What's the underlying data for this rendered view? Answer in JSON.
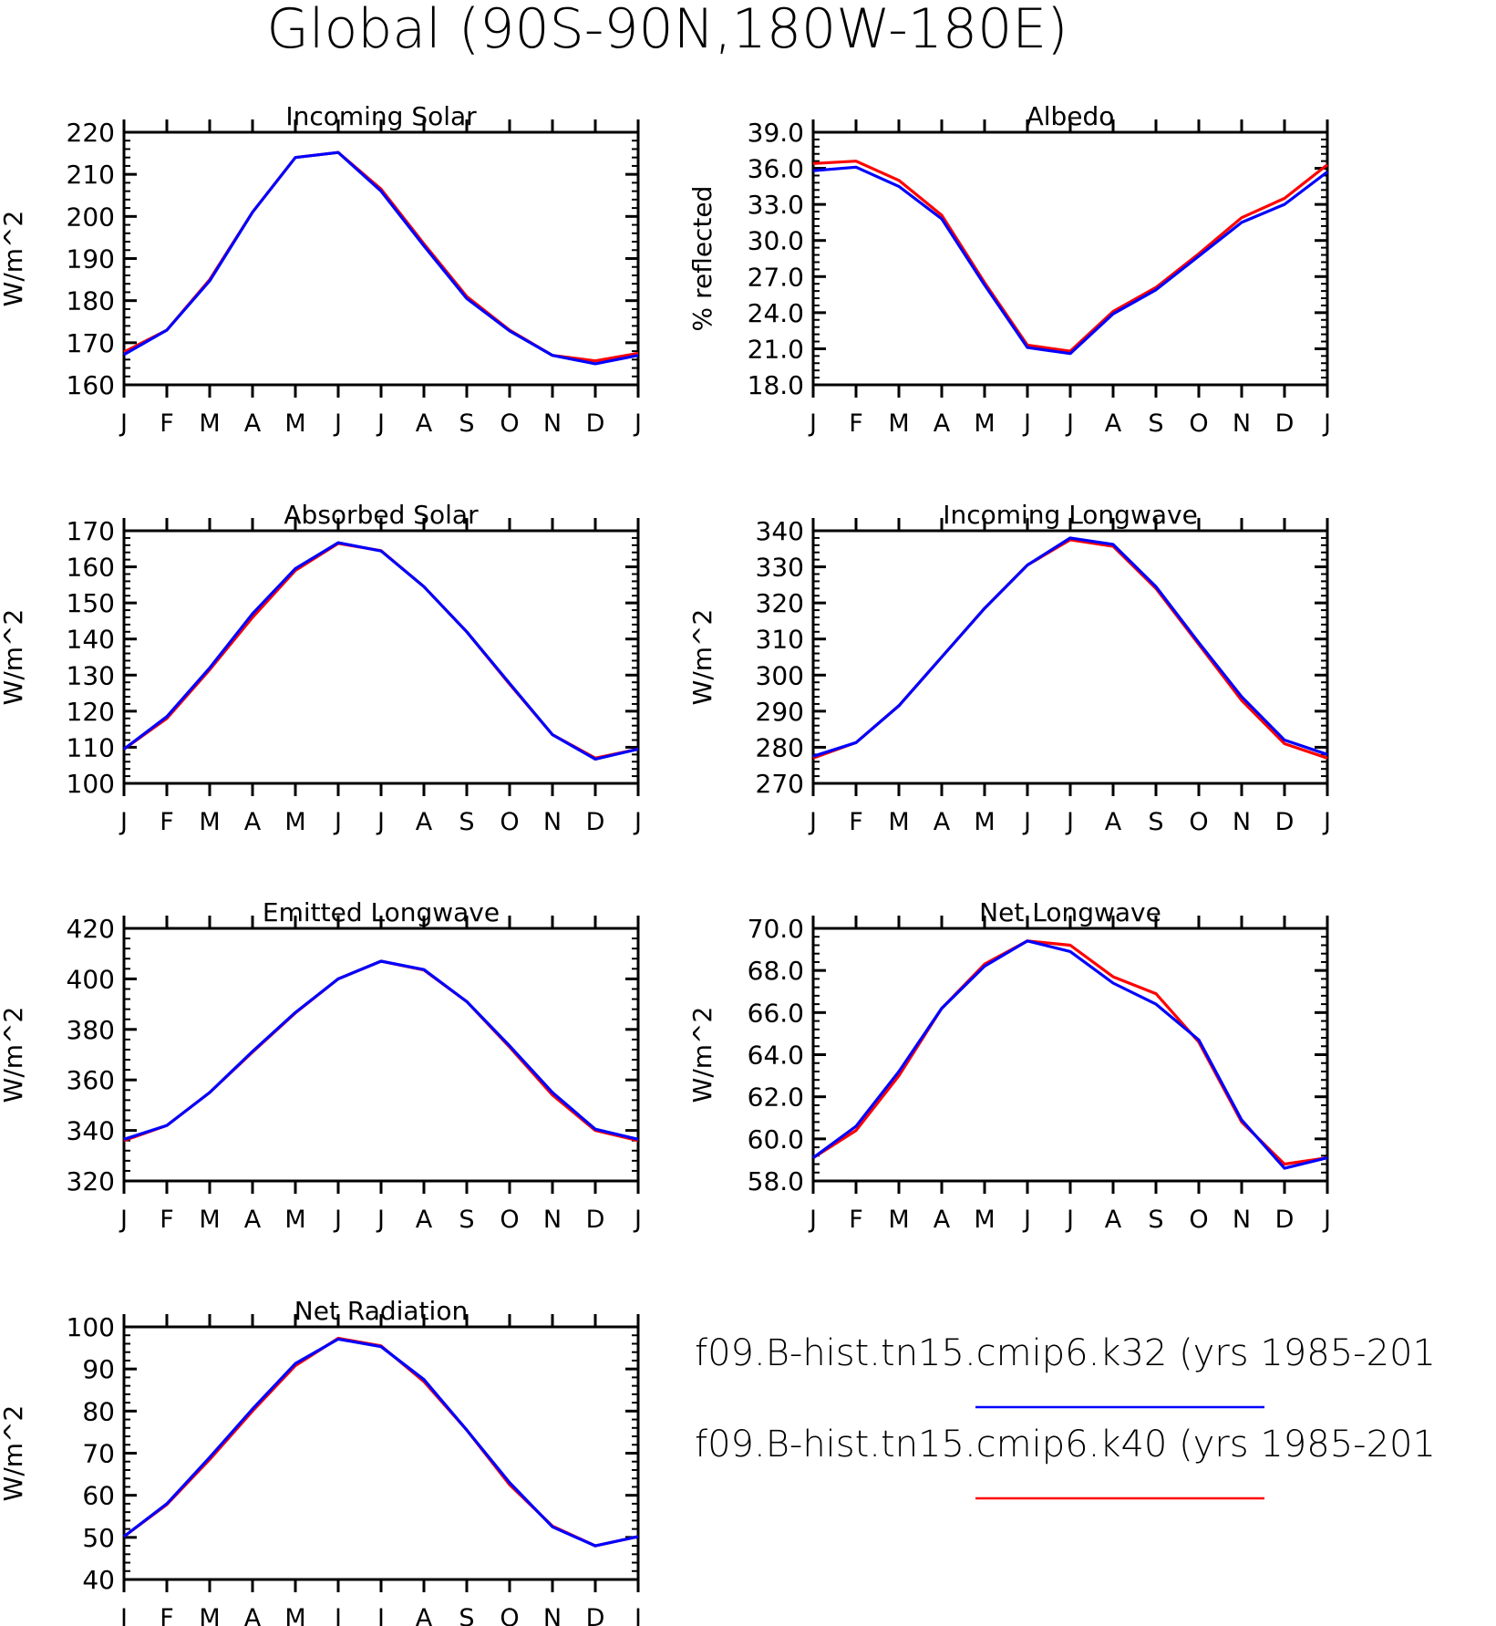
{
  "page_title": "Global (90S-90N,180W-180E)",
  "legend": {
    "placement": "bottom-right",
    "entries": [
      {
        "label": "f09.B-hist.tn15.cmip6.k32 (yrs 1985-201",
        "color": "#0000ff"
      },
      {
        "label": "f09.B-hist.tn15.cmip6.k40 (yrs 1985-201",
        "color": "#ff0000"
      }
    ]
  },
  "chart_data": [
    {
      "type": "line",
      "title": "Incoming Solar",
      "ylabel": "W/m^2",
      "xlabel": "",
      "categories": [
        "J",
        "F",
        "M",
        "A",
        "M",
        "J",
        "J",
        "A",
        "S",
        "O",
        "N",
        "D",
        "J"
      ],
      "ylim": [
        160,
        220
      ],
      "yticks": [
        "160",
        "170",
        "180",
        "190",
        "200",
        "210",
        "220"
      ],
      "grid": false,
      "series": [
        {
          "color": "#ff0000",
          "values": [
            167.8,
            173,
            185,
            201,
            214,
            215.2,
            206.5,
            193.5,
            181,
            173,
            167,
            165.7,
            167.5
          ]
        },
        {
          "color": "#0000ff",
          "values": [
            167.2,
            173,
            184.7,
            201,
            214,
            215.2,
            206,
            193,
            180.5,
            172.8,
            167,
            165,
            167
          ]
        }
      ]
    },
    {
      "type": "line",
      "title": "Albedo",
      "ylabel": "% reflected",
      "xlabel": "",
      "categories": [
        "J",
        "F",
        "M",
        "A",
        "M",
        "J",
        "J",
        "A",
        "S",
        "O",
        "N",
        "D",
        "J"
      ],
      "ylim": [
        18,
        39
      ],
      "yticks": [
        "18.0",
        "21.0",
        "24.0",
        "27.0",
        "30.0",
        "33.0",
        "36.0",
        "39.0"
      ],
      "grid": false,
      "series": [
        {
          "color": "#ff0000",
          "values": [
            36.4,
            36.6,
            35.0,
            32.1,
            26.5,
            21.3,
            20.8,
            24.1,
            26.1,
            28.9,
            31.9,
            33.5,
            36.3
          ]
        },
        {
          "color": "#0000ff",
          "values": [
            35.8,
            36.1,
            34.5,
            31.8,
            26.3,
            21.1,
            20.6,
            23.9,
            25.9,
            28.7,
            31.5,
            33.0,
            35.7
          ]
        }
      ]
    },
    {
      "type": "line",
      "title": "Absorbed Solar",
      "ylabel": "W/m^2",
      "xlabel": "",
      "categories": [
        "J",
        "F",
        "M",
        "A",
        "M",
        "J",
        "J",
        "A",
        "S",
        "O",
        "N",
        "D",
        "J"
      ],
      "ylim": [
        100,
        170
      ],
      "yticks": [
        "100",
        "110",
        "120",
        "130",
        "140",
        "150",
        "160",
        "170"
      ],
      "grid": false,
      "series": [
        {
          "color": "#ff0000",
          "values": [
            109.5,
            118,
            131.5,
            146,
            159,
            166.5,
            164.5,
            154.5,
            142,
            127.5,
            113.5,
            107,
            109.5
          ]
        },
        {
          "color": "#0000ff",
          "values": [
            109.5,
            118.5,
            132,
            147,
            159.5,
            166.7,
            164.4,
            154.5,
            142,
            127.7,
            113.5,
            106.7,
            109.5
          ]
        }
      ]
    },
    {
      "type": "line",
      "title": "Incoming Longwave",
      "ylabel": "W/m^2",
      "xlabel": "",
      "categories": [
        "J",
        "F",
        "M",
        "A",
        "M",
        "J",
        "J",
        "A",
        "S",
        "O",
        "N",
        "D",
        "J"
      ],
      "ylim": [
        270,
        340
      ],
      "yticks": [
        "270",
        "280",
        "290",
        "300",
        "310",
        "320",
        "330",
        "340"
      ],
      "grid": false,
      "series": [
        {
          "color": "#ff0000",
          "values": [
            277,
            281.3,
            291.5,
            305,
            318.5,
            330.5,
            337.5,
            335.7,
            324,
            308.5,
            293,
            281,
            277
          ]
        },
        {
          "color": "#0000ff",
          "values": [
            277.5,
            281.3,
            291.5,
            305,
            318.5,
            330.5,
            338,
            336.2,
            324.5,
            309,
            294,
            282,
            278
          ]
        }
      ]
    },
    {
      "type": "line",
      "title": "Emitted Longwave",
      "ylabel": "W/m^2",
      "xlabel": "",
      "categories": [
        "J",
        "F",
        "M",
        "A",
        "M",
        "J",
        "J",
        "A",
        "S",
        "O",
        "N",
        "D",
        "J"
      ],
      "ylim": [
        320,
        420
      ],
      "yticks": [
        "320",
        "340",
        "360",
        "380",
        "400",
        "420"
      ],
      "grid": false,
      "series": [
        {
          "color": "#ff0000",
          "values": [
            336,
            342,
            355,
            371,
            386.5,
            400,
            407,
            403.5,
            391,
            373,
            354,
            340,
            336
          ]
        },
        {
          "color": "#0000ff",
          "values": [
            336.5,
            342,
            355,
            371.3,
            386.7,
            400,
            407,
            403.7,
            391,
            373.5,
            355,
            340.5,
            336.5
          ]
        }
      ]
    },
    {
      "type": "line",
      "title": "Net Longwave",
      "ylabel": "W/m^2",
      "xlabel": "",
      "categories": [
        "J",
        "F",
        "M",
        "A",
        "M",
        "J",
        "J",
        "A",
        "S",
        "O",
        "N",
        "D",
        "J"
      ],
      "ylim": [
        58,
        70
      ],
      "yticks": [
        "58.0",
        "60.0",
        "62.0",
        "64.0",
        "66.0",
        "68.0",
        "70.0"
      ],
      "grid": false,
      "series": [
        {
          "color": "#ff0000",
          "values": [
            59.1,
            60.4,
            63.0,
            66.2,
            68.3,
            69.4,
            69.2,
            67.7,
            66.9,
            64.6,
            60.8,
            58.8,
            59.1
          ]
        },
        {
          "color": "#0000ff",
          "values": [
            59.1,
            60.6,
            63.2,
            66.2,
            68.2,
            69.4,
            68.9,
            67.4,
            66.4,
            64.7,
            60.9,
            58.6,
            59.1
          ]
        }
      ]
    },
    {
      "type": "line",
      "title": "Net Radiation",
      "ylabel": "W/m^2",
      "xlabel": "",
      "categories": [
        "J",
        "F",
        "M",
        "A",
        "M",
        "J",
        "J",
        "A",
        "S",
        "O",
        "N",
        "D",
        "J"
      ],
      "ylim": [
        40,
        100
      ],
      "yticks": [
        "40",
        "50",
        "60",
        "70",
        "80",
        "90",
        "100"
      ],
      "grid": false,
      "series": [
        {
          "color": "#ff0000",
          "values": [
            50.2,
            57.8,
            68.5,
            80,
            90.8,
            97.3,
            95.5,
            87,
            75.5,
            62.5,
            52.7,
            48,
            50.2
          ]
        },
        {
          "color": "#0000ff",
          "values": [
            50.2,
            58,
            69,
            80.5,
            91.3,
            97.1,
            95.3,
            87.5,
            75.5,
            63,
            52.5,
            48,
            50.2
          ]
        }
      ]
    }
  ]
}
